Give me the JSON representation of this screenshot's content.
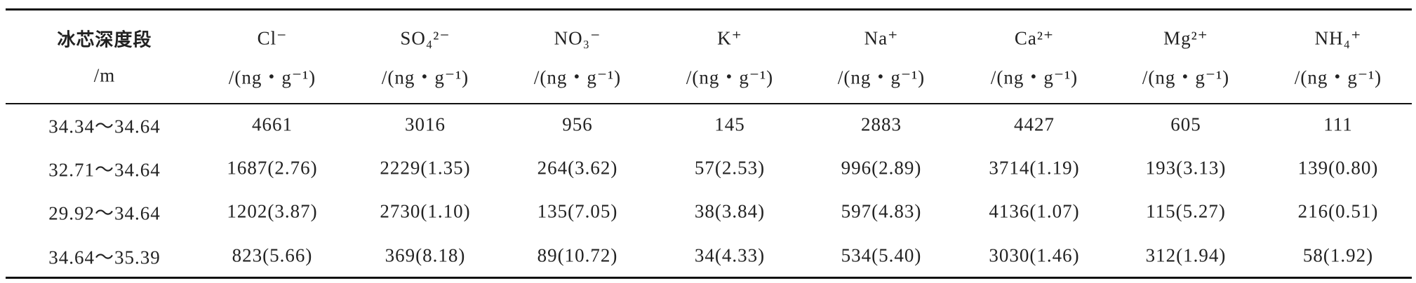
{
  "table": {
    "columns": [
      {
        "name": "冰芯深度段",
        "unit": "/m"
      },
      {
        "name": "Cl⁻",
        "unit": "/(ng・g⁻¹)"
      },
      {
        "name": "SO₄²⁻",
        "unit": "/(ng・g⁻¹)"
      },
      {
        "name": "NO₃⁻",
        "unit": "/(ng・g⁻¹)"
      },
      {
        "name": "K⁺",
        "unit": "/(ng・g⁻¹)"
      },
      {
        "name": "Na⁺",
        "unit": "/(ng・g⁻¹)"
      },
      {
        "name": "Ca²⁺",
        "unit": "/(ng・g⁻¹)"
      },
      {
        "name": "Mg²⁺",
        "unit": "/(ng・g⁻¹)"
      },
      {
        "name": "NH₄⁺",
        "unit": "/(ng・g⁻¹)"
      }
    ],
    "rows": [
      [
        "34.34～34.64",
        "4661",
        "3016",
        "956",
        "145",
        "2883",
        "4427",
        "605",
        "111"
      ],
      [
        "32.71～34.64",
        "1687(2.76)",
        "2229(1.35)",
        "264(3.62)",
        "57(2.53)",
        "996(2.89)",
        "3714(1.19)",
        "193(3.13)",
        "139(0.80)"
      ],
      [
        "29.92～34.64",
        "1202(3.87)",
        "2730(1.10)",
        "135(7.05)",
        "38(3.84)",
        "597(4.83)",
        "4136(1.07)",
        "115(5.27)",
        "216(0.51)"
      ],
      [
        "34.64～35.39",
        "823(5.66)",
        "369(8.18)",
        "89(10.72)",
        "34(4.33)",
        "534(5.40)",
        "3030(1.46)",
        "312(1.94)",
        "58(1.92)"
      ]
    ]
  }
}
